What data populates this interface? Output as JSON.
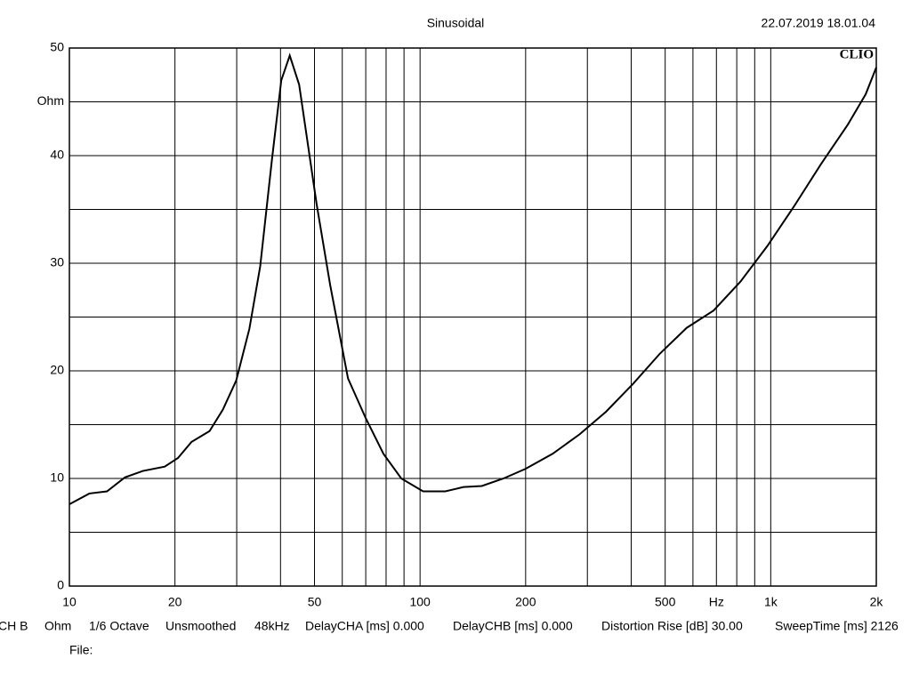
{
  "chart_data": {
    "type": "line",
    "title": "Sinusoidal",
    "timestamp": "22.07.2019 18.01.04",
    "brand": "CLIO",
    "xscale": "log",
    "xlim": [
      10,
      2000
    ],
    "ylim": [
      0,
      50
    ],
    "xticks": [
      10,
      20,
      50,
      100,
      200,
      500,
      {
        "value": 700,
        "label": "Hz"
      },
      {
        "value": 1000,
        "label": "1k"
      },
      {
        "value": 2000,
        "label": "2k"
      }
    ],
    "xgrid": [
      20,
      30,
      40,
      50,
      60,
      70,
      80,
      90,
      100,
      200,
      300,
      400,
      500,
      600,
      700,
      800,
      900,
      1000
    ],
    "yticks": [
      0,
      10,
      20,
      30,
      40,
      {
        "value": 45,
        "label": "Ohm"
      },
      50
    ],
    "ygrid": [
      5,
      10,
      15,
      20,
      25,
      30,
      35,
      40,
      45
    ],
    "color": "#000000",
    "x": [
      10,
      11.4,
      12.8,
      14.4,
      16.2,
      18.7,
      20.4,
      22.3,
      25.1,
      27.4,
      29.9,
      32.6,
      35,
      37.8,
      40.2,
      42.5,
      45.2,
      47.8,
      50.7,
      55.4,
      62.3,
      70,
      78.6,
      88.4,
      102,
      118,
      133,
      150,
      173,
      200,
      239,
      285,
      339,
      405,
      483,
      576,
      687,
      820,
      978,
      1166,
      1390,
      1660,
      1865,
      2000
    ],
    "values": [
      7.6,
      8.6,
      8.8,
      10.1,
      10.7,
      11.1,
      11.9,
      13.4,
      14.4,
      16.4,
      19.1,
      23.9,
      29.7,
      39.6,
      47,
      49.3,
      46.6,
      41.2,
      35.5,
      28,
      19.3,
      15.6,
      12.3,
      10,
      8.8,
      8.8,
      9.2,
      9.3,
      10,
      10.9,
      12.3,
      14.1,
      16.2,
      18.8,
      21.6,
      24,
      25.6,
      28.3,
      31.6,
      35.3,
      39.2,
      42.9,
      45.7,
      48.2
    ]
  },
  "footer": [
    "CH B",
    "Ohm",
    "1/6 Octave",
    "Unsmoothed",
    "48kHz",
    "DelayCHA [ms] 0.000",
    "DelayCHB [ms] 0.000",
    "Distortion Rise [dB] 30.00",
    "SweepTime [ms] 2126"
  ],
  "file_label": "File:"
}
